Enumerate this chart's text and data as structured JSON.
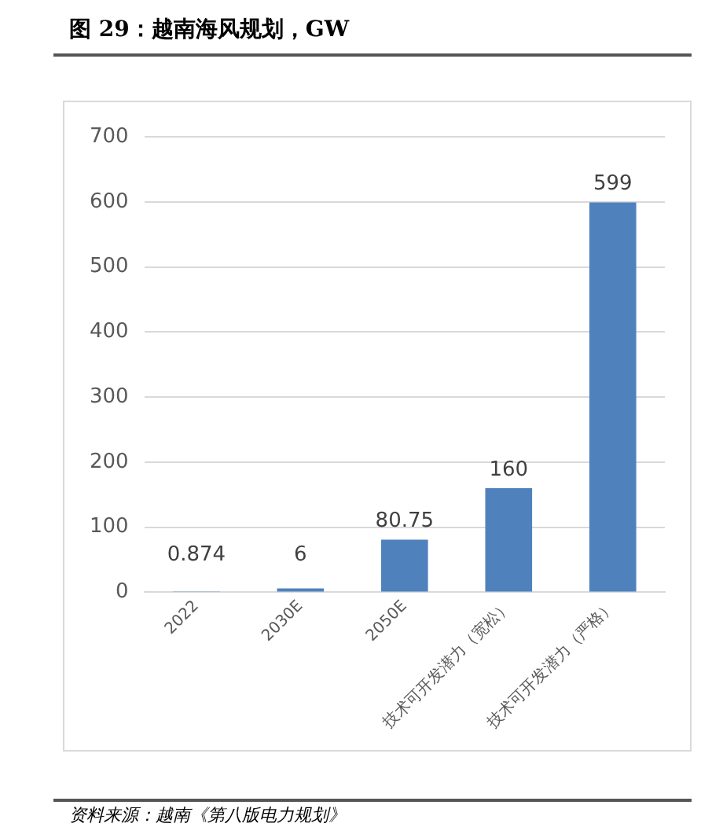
{
  "chart_data": {
    "type": "bar",
    "title": "图 29：越南海风规划，GW",
    "categories": [
      "2022",
      "2030E",
      "2050E",
      "技术可开发潜力（宽松）",
      "技术可开发潜力（严格）"
    ],
    "values": [
      0.874,
      6,
      80.75,
      160,
      599
    ],
    "color": "#4f81bd",
    "ylim": [
      0,
      700
    ],
    "yticks": [
      0,
      100,
      200,
      300,
      400,
      500,
      600,
      700
    ],
    "grid": "y",
    "legend": false,
    "data_labels": true,
    "annotations": [
      "资料来源：越南《第八版电力规划》"
    ]
  }
}
